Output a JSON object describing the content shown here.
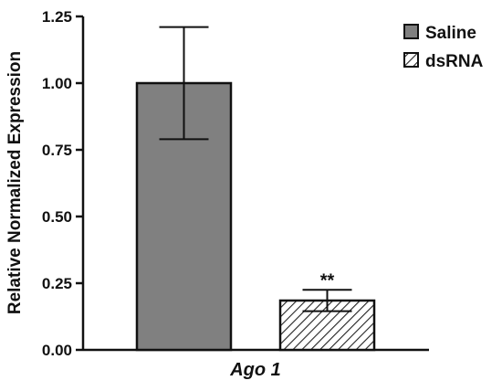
{
  "chart_data": {
    "type": "bar",
    "categories": [
      "Ago 1"
    ],
    "series": [
      {
        "name": "Saline",
        "values": [
          1.0
        ],
        "error": [
          0.21
        ],
        "fill": "solid",
        "color": "#808080"
      },
      {
        "name": "dsRNA",
        "values": [
          0.185
        ],
        "error": [
          0.04
        ],
        "fill": "hatched",
        "color": "#ffffff"
      }
    ],
    "ylabel": "Relative Normalized Expression",
    "xlabel": "",
    "ylim": [
      0,
      1.25
    ],
    "yticks": [
      "0.00",
      "0.25",
      "0.50",
      "0.75",
      "1.00",
      "1.25"
    ],
    "annotations": [
      {
        "series": "dsRNA",
        "category": "Ago 1",
        "text": "**"
      }
    ],
    "legend": "top-right",
    "grid": false
  }
}
